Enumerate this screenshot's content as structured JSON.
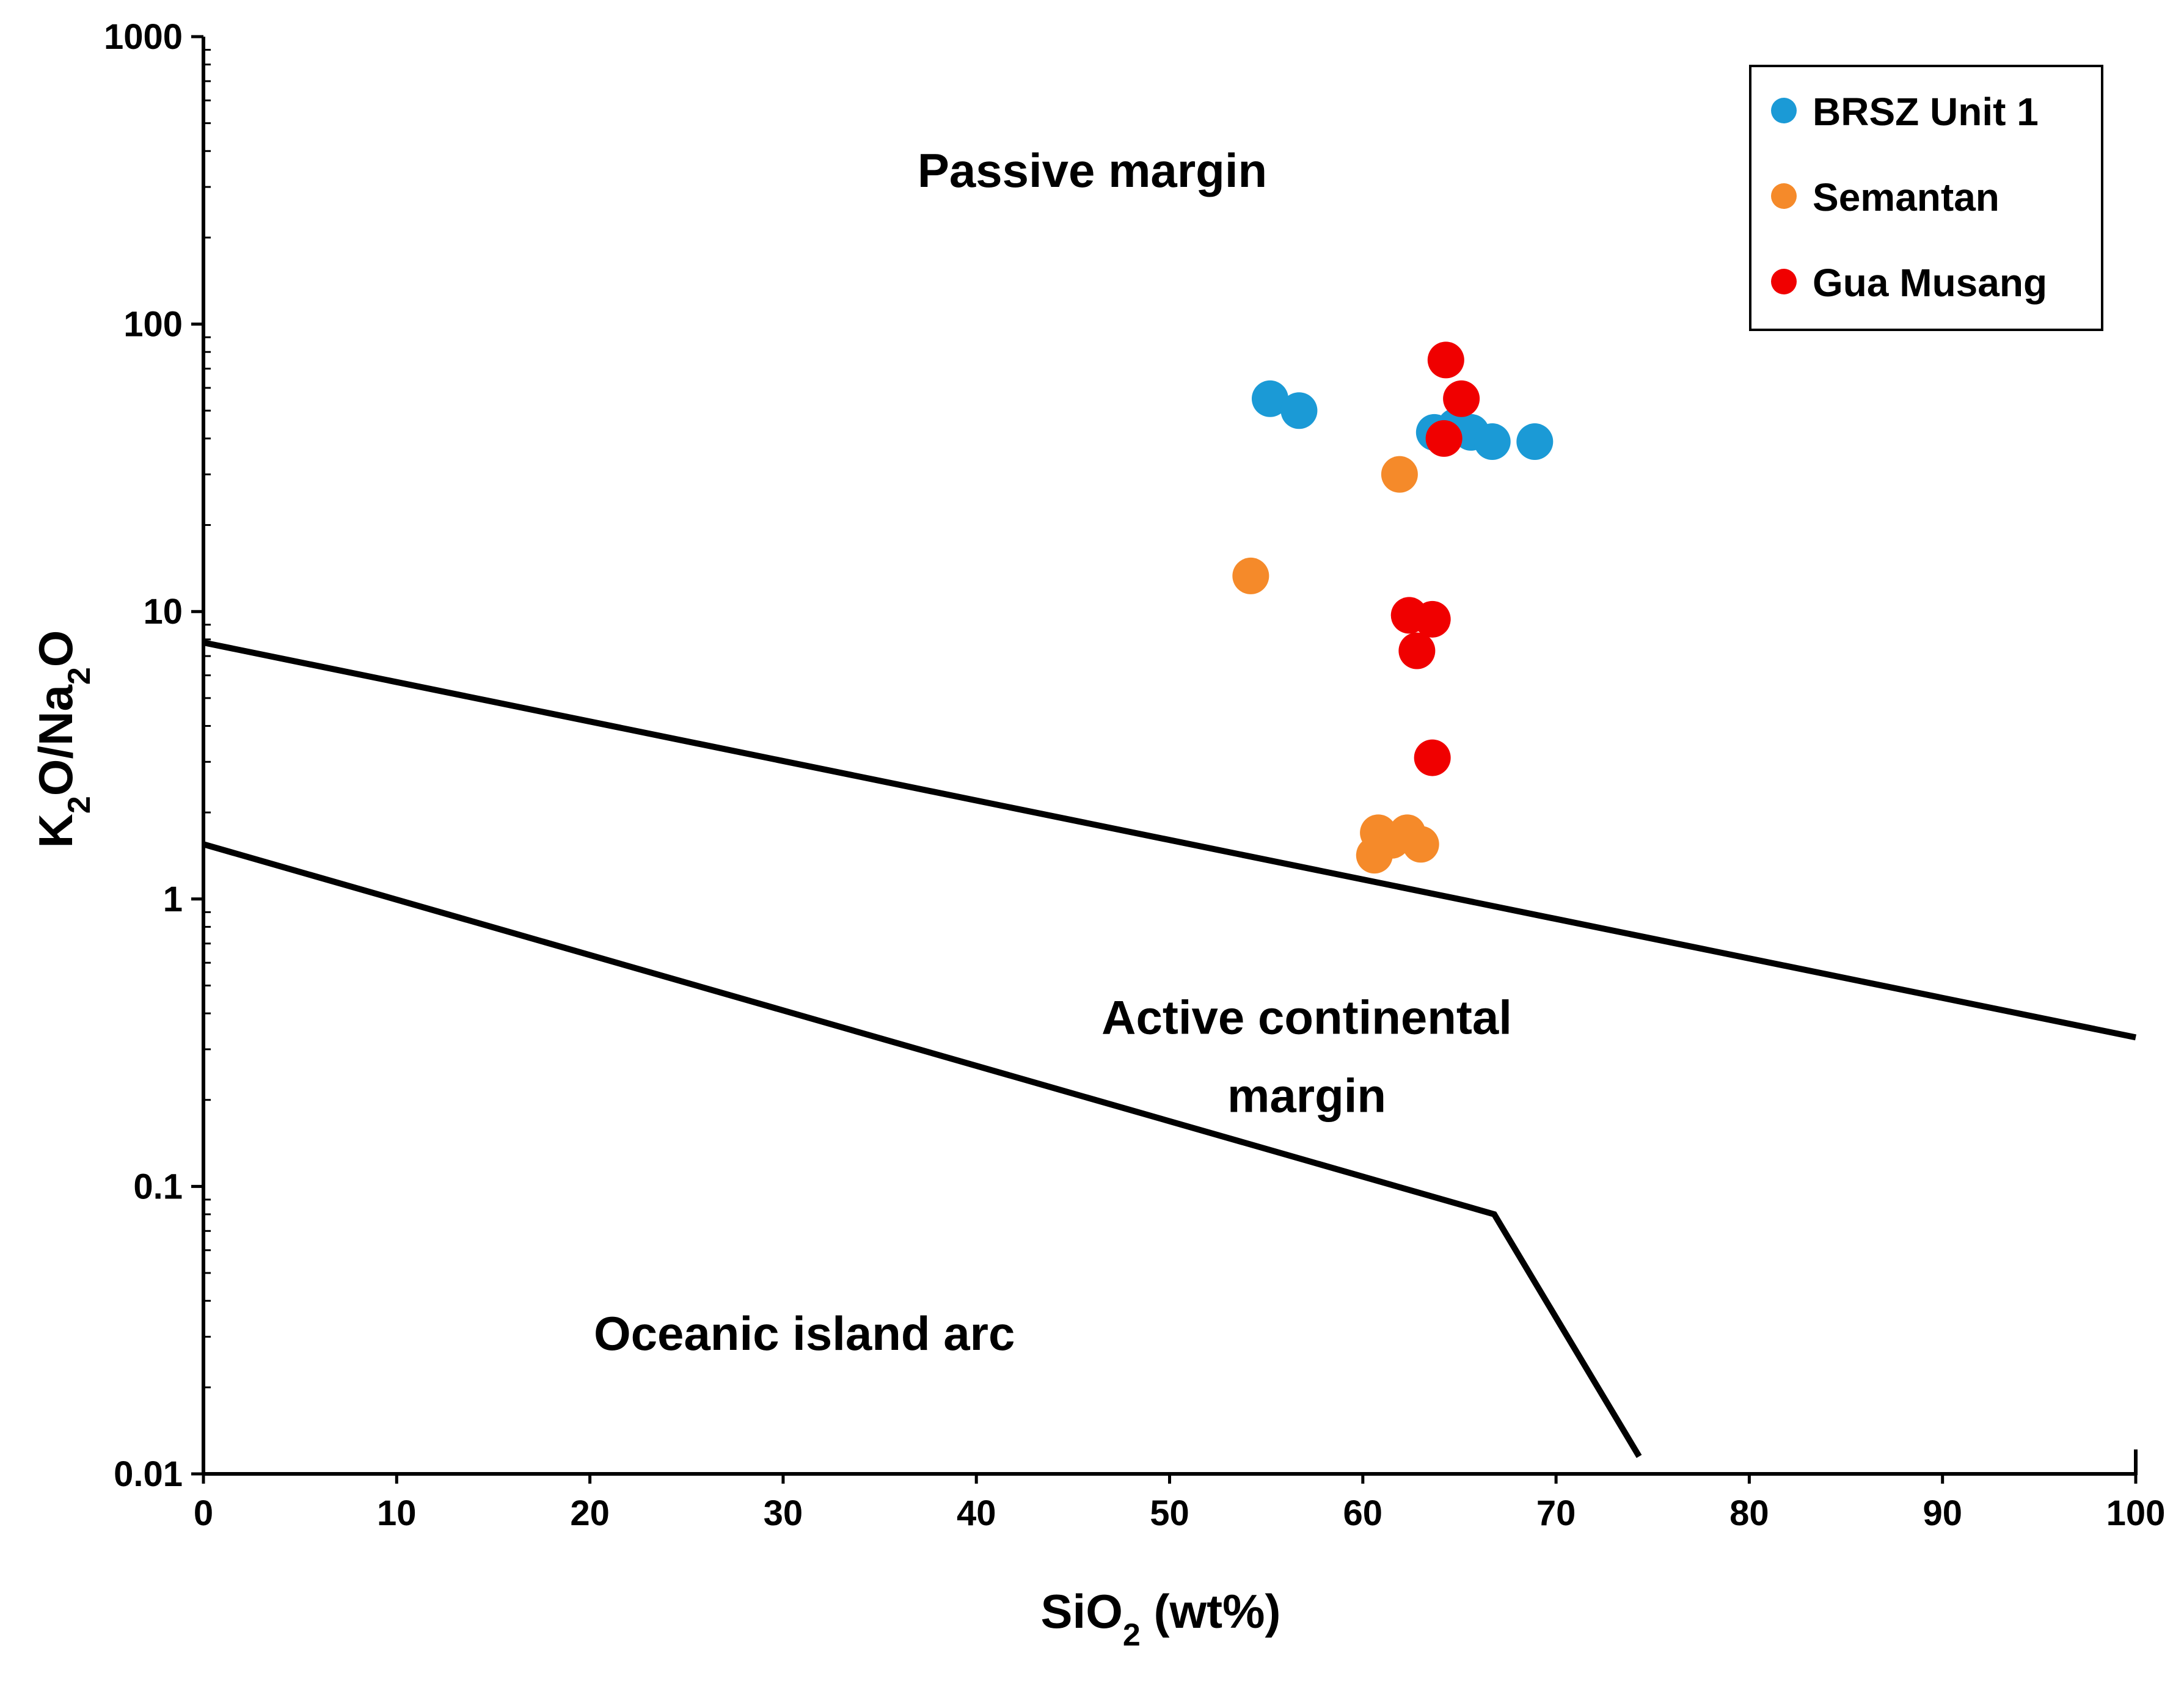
{
  "chart_data": {
    "type": "scatter",
    "title": "",
    "xlabel": {
      "base": "SiO",
      "sub": "2",
      "rest": " (wt%)"
    },
    "ylabel": {
      "k": "K",
      "k_sub": "2",
      "mid": "O/Na",
      "na_sub": "2",
      "end": "O"
    },
    "x_axis": {
      "scale": "linear",
      "range": [
        0,
        100
      ],
      "ticks": [
        0,
        10,
        20,
        30,
        40,
        50,
        60,
        70,
        80,
        90,
        100
      ],
      "tick_labels": [
        "0",
        "10",
        "20",
        "30",
        "40",
        "50",
        "60",
        "70",
        "80",
        "90",
        "100"
      ]
    },
    "y_axis": {
      "scale": "log10",
      "range": [
        0.01,
        1000
      ],
      "ticks": [
        0.01,
        0.1,
        1,
        10,
        100,
        1000
      ],
      "tick_labels": [
        "0.01",
        "0.1",
        "1",
        "10",
        "100",
        "1000"
      ]
    },
    "grid": false,
    "legend_position": "top-right",
    "series": [
      {
        "name": "BRSZ Unit 1",
        "color": "#1b9ad6",
        "points": [
          {
            "x": 55.2,
            "y": 55
          },
          {
            "x": 56.7,
            "y": 50
          },
          {
            "x": 63.7,
            "y": 42
          },
          {
            "x": 64.8,
            "y": 44
          },
          {
            "x": 65.6,
            "y": 42
          },
          {
            "x": 66.7,
            "y": 39
          },
          {
            "x": 68.9,
            "y": 39
          }
        ]
      },
      {
        "name": "Semantan",
        "color": "#f58a2a",
        "points": [
          {
            "x": 61.9,
            "y": 30
          },
          {
            "x": 54.2,
            "y": 13.3
          },
          {
            "x": 60.8,
            "y": 1.7
          },
          {
            "x": 62.3,
            "y": 1.7
          },
          {
            "x": 61.5,
            "y": 1.6
          },
          {
            "x": 63.0,
            "y": 1.55
          },
          {
            "x": 60.6,
            "y": 1.42
          }
        ]
      },
      {
        "name": "Gua Musang",
        "color": "#f00000",
        "points": [
          {
            "x": 64.3,
            "y": 75
          },
          {
            "x": 65.1,
            "y": 55
          },
          {
            "x": 64.2,
            "y": 40
          },
          {
            "x": 62.4,
            "y": 9.7
          },
          {
            "x": 63.6,
            "y": 9.4
          },
          {
            "x": 62.8,
            "y": 7.3
          },
          {
            "x": 63.6,
            "y": 3.1
          }
        ]
      }
    ],
    "boundary_lines": [
      {
        "name": "passive-active boundary",
        "points": [
          [
            0,
            7.8
          ],
          [
            100,
            0.33
          ]
        ]
      },
      {
        "name": "active-arc boundary",
        "points": [
          [
            0,
            1.55
          ],
          [
            66.8,
            0.08
          ],
          [
            74.3,
            0.0115
          ]
        ]
      }
    ],
    "regions": [
      {
        "name": "region-passive-margin",
        "lines": [
          "Passive margin"
        ]
      },
      {
        "name": "region-active-continental-margin",
        "lines": [
          "Active continental",
          "margin"
        ]
      },
      {
        "name": "region-oceanic-island-arc",
        "lines": [
          "Oceanic island arc"
        ]
      }
    ]
  }
}
